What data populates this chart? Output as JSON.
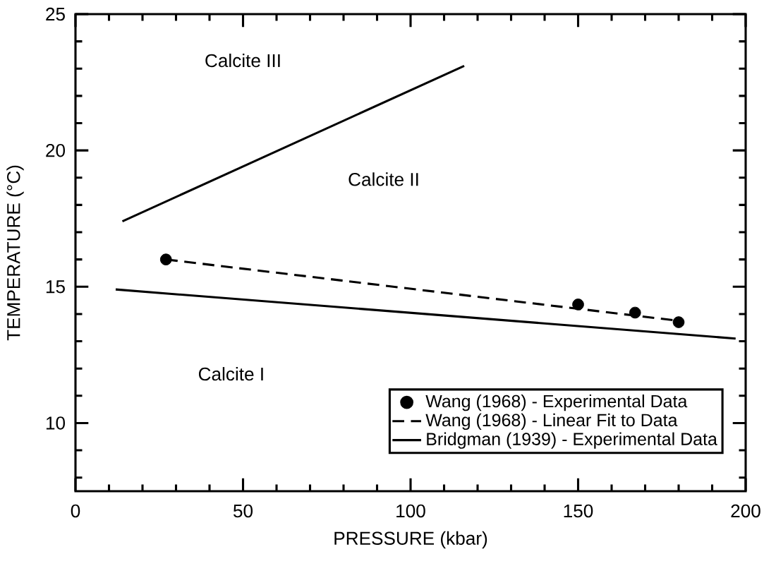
{
  "chart_data": {
    "type": "line",
    "xlabel": "PRESSURE (kbar)",
    "ylabel": "TEMPERATURE (°C)",
    "xlim": [
      0,
      200
    ],
    "ylim": [
      7.5,
      25
    ],
    "xticks": [
      0,
      {
        "value": 10,
        "label": null
      },
      {
        "value": 20,
        "label": null
      },
      {
        "value": 30,
        "label": null
      },
      {
        "value": 40,
        "label": null
      },
      50,
      {
        "value": 60,
        "label": null
      },
      {
        "value": 70,
        "label": null
      },
      {
        "value": 80,
        "label": null
      },
      {
        "value": 90,
        "label": null
      },
      100,
      {
        "value": 110,
        "label": null
      },
      {
        "value": 120,
        "label": null
      },
      {
        "value": 130,
        "label": null
      },
      {
        "value": 140,
        "label": null
      },
      150,
      {
        "value": 160,
        "label": null
      },
      {
        "value": 170,
        "label": null
      },
      {
        "value": 180,
        "label": null
      },
      {
        "value": 190,
        "label": null
      },
      200
    ],
    "yticks": [
      {
        "value": 8,
        "label": null
      },
      {
        "value": 9,
        "label": null
      },
      10,
      {
        "value": 11,
        "label": null
      },
      {
        "value": 12,
        "label": null
      },
      {
        "value": 13,
        "label": null
      },
      {
        "value": 14,
        "label": null
      },
      15,
      {
        "value": 16,
        "label": null
      },
      {
        "value": 17,
        "label": null
      },
      {
        "value": 18,
        "label": null
      },
      {
        "value": 19,
        "label": null
      },
      20,
      {
        "value": 21,
        "label": null
      },
      {
        "value": 22,
        "label": null
      },
      {
        "value": 23,
        "label": null
      },
      {
        "value": 24,
        "label": null
      },
      25
    ],
    "legend": "bottom right",
    "series": [
      {
        "name": "Wang (1968) - Experimental Data",
        "type": "scatter",
        "marker": "circle",
        "color": "#000000",
        "x": [
          27,
          150,
          167,
          180
        ],
        "values": [
          16.0,
          14.35,
          14.05,
          13.7
        ]
      },
      {
        "name": "Wang (1968) - Linear Fit to Data",
        "line_style": "dashed",
        "color": "#000000",
        "x": [
          27,
          180
        ],
        "values": [
          16.0,
          13.75
        ]
      },
      {
        "name": "Bridgman (1939) - Experimental Data",
        "line_style": "solid",
        "color": "#000000",
        "x": [
          12,
          197
        ],
        "values": [
          14.9,
          13.1
        ]
      },
      {
        "line_style": "solid",
        "color": "#000000",
        "x": [
          14,
          116
        ],
        "values": [
          17.4,
          23.1
        ]
      }
    ],
    "annotations": [
      "Calcite III",
      "Calcite II",
      "Calcite I"
    ]
  }
}
